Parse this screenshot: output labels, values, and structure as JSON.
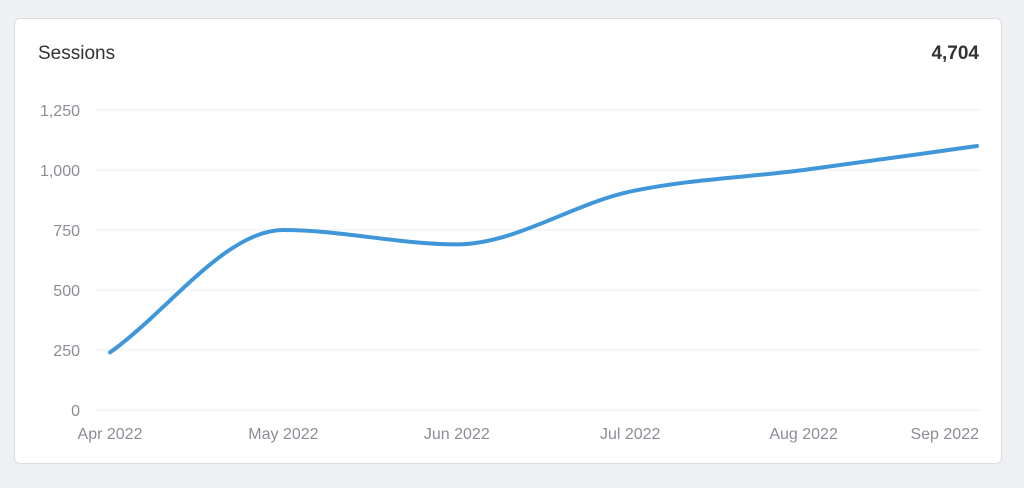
{
  "widget": {
    "title": "Sessions",
    "total": "4,704"
  },
  "colors": {
    "line": "#3f97d9",
    "grid": "#eaecef",
    "axis_text": "#8a8d93"
  },
  "chart_data": {
    "type": "line",
    "title": "Sessions",
    "x": [
      "Apr 2022",
      "May 2022",
      "Jun 2022",
      "Jul 2022",
      "Aug 2022",
      "Sep 2022"
    ],
    "series": [
      {
        "values": [
          240,
          750,
          690,
          910,
          1000,
          1100
        ]
      }
    ],
    "yticks": [
      "0",
      "250",
      "500",
      "750",
      "1,000",
      "1,250"
    ],
    "ytick_values": [
      0,
      250,
      500,
      750,
      1000,
      1250
    ],
    "ylim": [
      0,
      1250
    ],
    "grid": true,
    "legend": "none"
  }
}
